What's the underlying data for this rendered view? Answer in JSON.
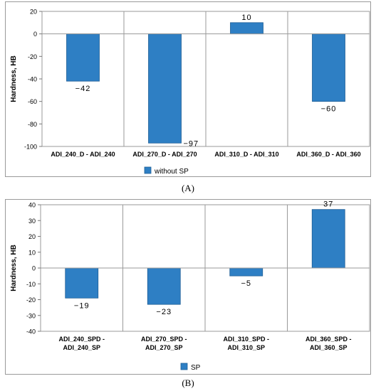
{
  "chart_data": [
    {
      "type": "bar",
      "panel_label": "(A)",
      "categories": [
        "ADI_240_D - ADI_240",
        "ADI_270_D - ADI_270",
        "ADI_310_D - ADI_310",
        "ADI_360_D - ADI_360"
      ],
      "series": [
        {
          "name": "without SP",
          "values": [
            -42,
            -97,
            10,
            -60
          ],
          "color": "#2e7fc4"
        }
      ],
      "data_labels": [
        "−42",
        "−97",
        "10",
        "−60"
      ],
      "ylabel": "Hardness, HB",
      "ylim": [
        -100,
        20
      ],
      "yticks": [
        20,
        0,
        -20,
        -40,
        -60,
        -80,
        -100
      ],
      "ytick_labels": [
        "20",
        "0",
        "-20",
        "-40",
        "-60",
        "-80",
        "-100"
      ],
      "grid": "vertical category separators",
      "legend": "bottom"
    },
    {
      "type": "bar",
      "panel_label": "(B)",
      "categories": [
        [
          "ADI_240_SPD -",
          "ADI_240_SP"
        ],
        [
          "ADI_270_SPD -",
          "ADI_270_SP"
        ],
        [
          "ADI_310_SPD -",
          "ADI_310_SP"
        ],
        [
          "ADI_360_SPD -",
          "ADI_360_SP"
        ]
      ],
      "series": [
        {
          "name": "SP",
          "values": [
            -19,
            -23,
            -5,
            37
          ],
          "color": "#2e7fc4"
        }
      ],
      "data_labels": [
        "−19",
        "−23",
        "−5",
        "37"
      ],
      "ylabel": "Hardness, HB",
      "ylim": [
        -40,
        40
      ],
      "yticks": [
        40,
        30,
        20,
        10,
        0,
        -10,
        -20,
        -30,
        -40
      ],
      "ytick_labels": [
        "40",
        "30",
        "20",
        "10",
        "0",
        "-10",
        "-20",
        "-30",
        "-40"
      ],
      "grid": "vertical category separators",
      "legend": "bottom"
    }
  ]
}
